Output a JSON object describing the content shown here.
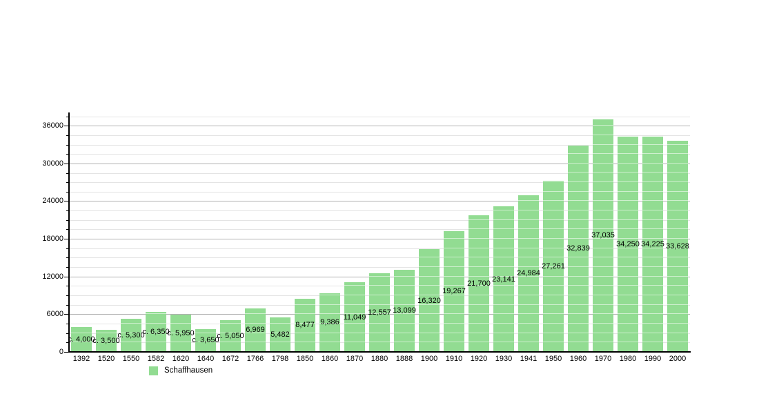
{
  "chart_data": {
    "type": "bar",
    "title": "",
    "xlabel": "",
    "ylabel": "",
    "legend_label": "Schaffhausen",
    "legend_position": "bottom-left",
    "grid": true,
    "ylim": [
      0,
      38000
    ],
    "y_major_tick_step": 6000,
    "y_minor_tick_step": 1500,
    "y_tick_labels": [
      "0",
      "6000",
      "12000",
      "18000",
      "24000",
      "30000",
      "36000"
    ],
    "categories": [
      "1392",
      "1520",
      "1550",
      "1582",
      "1620",
      "1640",
      "1672",
      "1766",
      "1798",
      "1850",
      "1860",
      "1870",
      "1880",
      "1888",
      "1900",
      "1910",
      "1920",
      "1930",
      "1941",
      "1950",
      "1960",
      "1970",
      "1980",
      "1990",
      "2000"
    ],
    "values": [
      4000,
      3500,
      5300,
      6350,
      5950,
      3650,
      5050,
      6969,
      5482,
      8477,
      9386,
      11049,
      12557,
      13099,
      16320,
      19267,
      21700,
      23141,
      24984,
      27261,
      32839,
      37035,
      34250,
      34225,
      33628
    ],
    "bar_labels": [
      "c. 4,000",
      "c. 3,500",
      "c. 5,300",
      "c. 6,350",
      "c. 5,950",
      "c. 3,650",
      "c. 5,050",
      "6,969",
      "5,482",
      "8,477",
      "9,386",
      "11,049",
      "12,557",
      "13,099",
      "16,320",
      "19,267",
      "21,700",
      "23,141",
      "24,984",
      "27,261",
      "32,839",
      "37,035",
      "34,250",
      "34,225",
      "33,628"
    ]
  },
  "colors": {
    "bar": "#92dc92",
    "grid_major": "#b0b0b0",
    "grid_minor": "#e4e4e4",
    "axis": "#000000",
    "text": "#000000",
    "background": "#ffffff"
  }
}
